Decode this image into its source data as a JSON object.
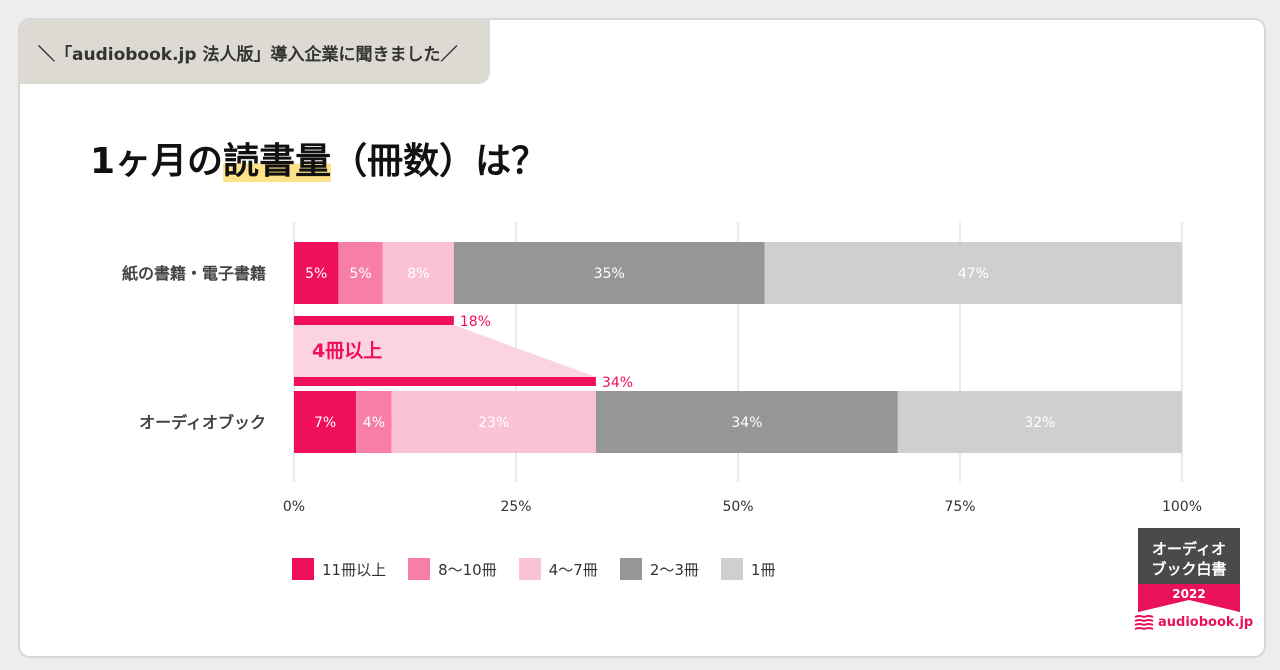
{
  "banner": "＼「audiobook.jp 法人版」導入企業に聞きました／",
  "title": {
    "pre": "1ヶ月の",
    "highlight": "読書量",
    "post": "（冊数）は？"
  },
  "chart_data": {
    "type": "bar",
    "orientation": "horizontal-stacked-100",
    "categories": [
      "紙の書籍・電子書籍",
      "オーディオブック"
    ],
    "series": [
      {
        "name": "11冊以上",
        "color": "#f0105a",
        "values": [
          5,
          7
        ]
      },
      {
        "name": "8〜10冊",
        "color": "#f77fa6",
        "values": [
          5,
          4
        ]
      },
      {
        "name": "4〜7冊",
        "color": "#fbc2d6",
        "values": [
          8,
          23
        ]
      },
      {
        "name": "2〜3冊",
        "color": "#969696",
        "values": [
          35,
          34
        ]
      },
      {
        "name": "1冊",
        "color": "#cfcfcf",
        "values": [
          47,
          32
        ]
      }
    ],
    "value_labels": [
      [
        "5%",
        "5%",
        "8%",
        "35%",
        "47%"
      ],
      [
        "7%",
        "4%",
        "23%",
        "34%",
        "32%"
      ]
    ],
    "xlim": [
      0,
      100
    ],
    "x_ticks": [
      "0%",
      "25%",
      "50%",
      "75%",
      "100%"
    ],
    "grid": true,
    "legend_position": "bottom",
    "annotation": {
      "label": "4冊以上",
      "values": [
        18,
        34
      ],
      "value_labels": [
        "18%",
        "34%"
      ],
      "color": "#f0105a"
    }
  },
  "badge": {
    "line1": "オーディオ",
    "line2": "ブック白書",
    "year": "2022"
  },
  "logo": {
    "text": "audiobook.jp",
    "icon": "book-stack-icon"
  }
}
